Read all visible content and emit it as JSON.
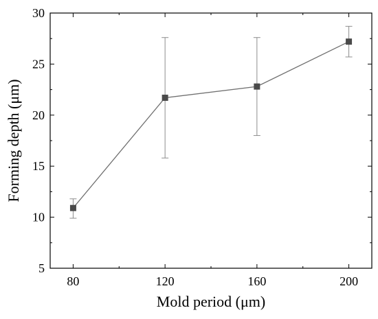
{
  "chart_data": {
    "type": "line",
    "title": "",
    "xlabel": "Mold period (μm)",
    "ylabel": "Forming depth (μm)",
    "x": [
      80,
      120,
      160,
      200
    ],
    "xticks": [
      "80",
      "120",
      "160",
      "200"
    ],
    "xlim": [
      70,
      210
    ],
    "yticks": [
      "5",
      "10",
      "15",
      "20",
      "25",
      "30"
    ],
    "ylim": [
      5,
      30
    ],
    "grid": false,
    "legend": "none",
    "series": [
      {
        "values": [
          10.9,
          21.7,
          22.8,
          27.2
        ],
        "error_low": [
          9.9,
          15.8,
          18.0,
          25.7
        ],
        "error_high": [
          11.8,
          27.6,
          27.6,
          28.7
        ],
        "marker": "square",
        "color": "#4a4a4a"
      }
    ]
  }
}
